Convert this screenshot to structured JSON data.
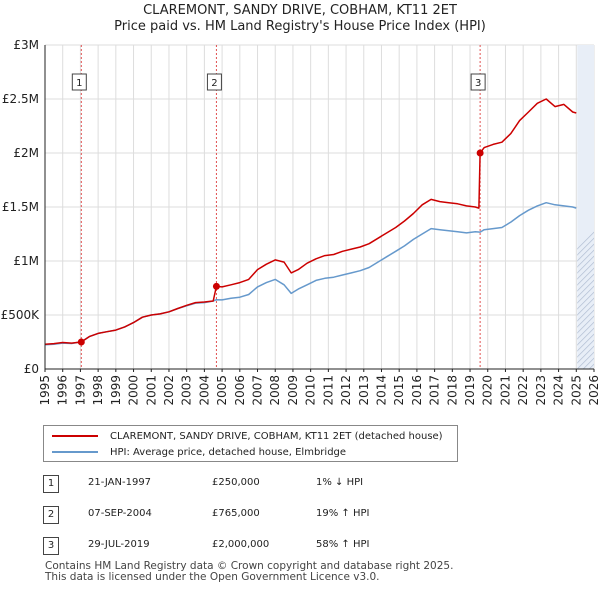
{
  "title_line1": "CLAREMONT, SANDY DRIVE, COBHAM, KT11 2ET",
  "title_line2": "Price paid vs. HM Land Registry's House Price Index (HPI)",
  "colors": {
    "property": "#cc0000",
    "hpi": "#6699cc",
    "grid": "#dddddd",
    "shade": "#e8eef7",
    "marker_line": "#e05050"
  },
  "chart_data": {
    "type": "line",
    "title": "CLAREMONT, SANDY DRIVE, COBHAM, KT11 2ET — Price paid vs. HM Land Registry's House Price Index (HPI)",
    "xlabel": "",
    "ylabel": "",
    "xlim": [
      1995,
      2026
    ],
    "ylim": [
      0,
      3000000
    ],
    "x_ticks": [
      "1995",
      "1996",
      "1997",
      "1998",
      "1999",
      "2000",
      "2001",
      "2002",
      "2003",
      "2004",
      "2005",
      "2006",
      "2007",
      "2008",
      "2009",
      "2010",
      "2011",
      "2012",
      "2013",
      "2014",
      "2015",
      "2016",
      "2017",
      "2018",
      "2019",
      "2020",
      "2021",
      "2022",
      "2023",
      "2024",
      "2025",
      "2026"
    ],
    "y_ticks": [
      {
        "value": 0,
        "label": "£0"
      },
      {
        "value": 500000,
        "label": "£500K"
      },
      {
        "value": 1000000,
        "label": "£1M"
      },
      {
        "value": 1500000,
        "label": "£1.5M"
      },
      {
        "value": 2000000,
        "label": "£2M"
      },
      {
        "value": 2500000,
        "label": "£2.5M"
      },
      {
        "value": 3000000,
        "label": "£3M"
      }
    ],
    "shaded_region": [
      2025.05,
      2026
    ],
    "series": [
      {
        "name": "CLAREMONT, SANDY DRIVE, COBHAM, KT11 2ET (detached house)",
        "color": "#cc0000",
        "x": [
          1995.0,
          1995.5,
          1996.0,
          1996.5,
          1997.05,
          1997.5,
          1998.0,
          1998.5,
          1999.0,
          1999.5,
          2000.0,
          2000.5,
          2001.0,
          2001.5,
          2002.0,
          2002.5,
          2003.0,
          2003.5,
          2004.0,
          2004.5,
          2004.68,
          2005.0,
          2005.5,
          2006.0,
          2006.5,
          2007.0,
          2007.5,
          2008.0,
          2008.5,
          2008.9,
          2009.3,
          2009.8,
          2010.3,
          2010.8,
          2011.3,
          2011.8,
          2012.3,
          2012.8,
          2013.3,
          2013.8,
          2014.3,
          2014.8,
          2015.3,
          2015.8,
          2016.3,
          2016.8,
          2017.3,
          2017.8,
          2018.3,
          2018.8,
          2019.3,
          2019.5,
          2019.57,
          2019.8,
          2020.3,
          2020.8,
          2021.3,
          2021.8,
          2022.3,
          2022.8,
          2023.3,
          2023.8,
          2024.3,
          2024.8,
          2025.0
        ],
        "y": [
          230000,
          235000,
          245000,
          240000,
          250000,
          300000,
          330000,
          345000,
          360000,
          390000,
          430000,
          480000,
          500000,
          510000,
          530000,
          560000,
          590000,
          615000,
          620000,
          630000,
          765000,
          760000,
          780000,
          800000,
          830000,
          920000,
          970000,
          1010000,
          990000,
          890000,
          920000,
          980000,
          1020000,
          1050000,
          1060000,
          1090000,
          1110000,
          1130000,
          1160000,
          1210000,
          1260000,
          1310000,
          1370000,
          1440000,
          1520000,
          1570000,
          1550000,
          1540000,
          1530000,
          1510000,
          1500000,
          1490000,
          2000000,
          2050000,
          2080000,
          2100000,
          2180000,
          2300000,
          2380000,
          2460000,
          2500000,
          2430000,
          2450000,
          2380000,
          2370000
        ]
      },
      {
        "name": "HPI: Average price, detached house, Elmbridge",
        "color": "#6699cc",
        "x": [
          1995.0,
          1995.5,
          1996.0,
          1996.5,
          1997.05,
          1997.5,
          1998.0,
          1998.5,
          1999.0,
          1999.5,
          2000.0,
          2000.5,
          2001.0,
          2001.5,
          2002.0,
          2002.5,
          2003.0,
          2003.5,
          2004.0,
          2004.5,
          2004.68,
          2005.0,
          2005.5,
          2006.0,
          2006.5,
          2007.0,
          2007.5,
          2008.0,
          2008.5,
          2008.9,
          2009.3,
          2009.8,
          2010.3,
          2010.8,
          2011.3,
          2011.8,
          2012.3,
          2012.8,
          2013.3,
          2013.8,
          2014.3,
          2014.8,
          2015.3,
          2015.8,
          2016.3,
          2016.8,
          2017.3,
          2017.8,
          2018.3,
          2018.8,
          2019.3,
          2019.57,
          2019.8,
          2020.3,
          2020.8,
          2021.3,
          2021.8,
          2022.3,
          2022.8,
          2023.3,
          2023.8,
          2024.3,
          2024.8,
          2025.0
        ],
        "y": [
          225000,
          230000,
          240000,
          236000,
          252000,
          300000,
          330000,
          345000,
          360000,
          390000,
          430000,
          480000,
          500000,
          510000,
          530000,
          560000,
          585000,
          610000,
          615000,
          630000,
          642000,
          640000,
          655000,
          665000,
          690000,
          760000,
          800000,
          830000,
          780000,
          700000,
          740000,
          780000,
          820000,
          840000,
          850000,
          870000,
          890000,
          910000,
          940000,
          990000,
          1040000,
          1090000,
          1140000,
          1200000,
          1250000,
          1300000,
          1290000,
          1280000,
          1270000,
          1260000,
          1270000,
          1268000,
          1290000,
          1300000,
          1310000,
          1360000,
          1420000,
          1470000,
          1510000,
          1540000,
          1520000,
          1510000,
          1500000,
          1490000
        ]
      }
    ],
    "transactions": [
      {
        "label": "1",
        "x": 1997.05,
        "y": 250000
      },
      {
        "label": "2",
        "x": 2004.68,
        "y": 765000
      },
      {
        "label": "3",
        "x": 2019.57,
        "y": 2000000
      }
    ]
  },
  "legend": {
    "property": "CLAREMONT, SANDY DRIVE, COBHAM, KT11 2ET (detached house)",
    "hpi": "HPI: Average price, detached house, Elmbridge"
  },
  "table": [
    {
      "num": "1",
      "date": "21-JAN-1997",
      "price": "£250,000",
      "hpi": "1% ↓ HPI"
    },
    {
      "num": "2",
      "date": "07-SEP-2004",
      "price": "£765,000",
      "hpi": "19% ↑ HPI"
    },
    {
      "num": "3",
      "date": "29-JUL-2019",
      "price": "£2,000,000",
      "hpi": "58% ↑ HPI"
    }
  ],
  "footer_line1": "Contains HM Land Registry data © Crown copyright and database right 2025.",
  "footer_line2": "This data is licensed under the Open Government Licence v3.0."
}
